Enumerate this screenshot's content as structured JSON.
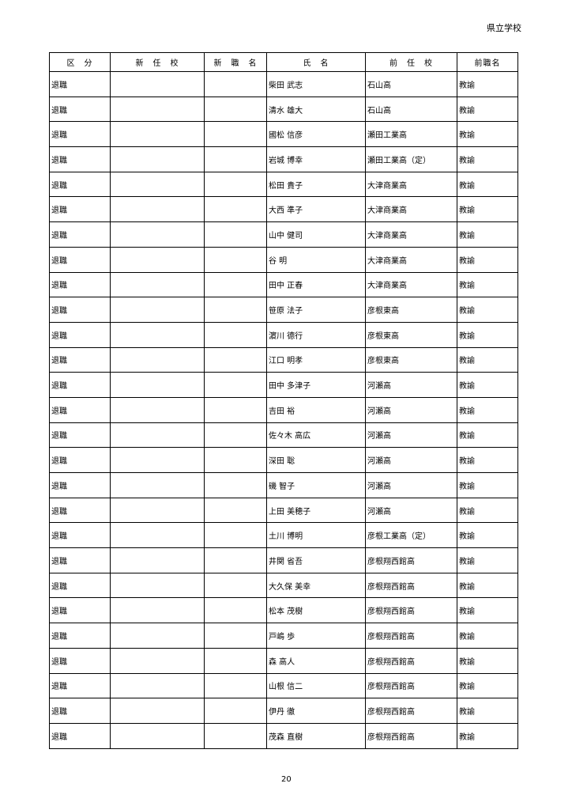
{
  "header": {
    "label": "県立学校"
  },
  "table": {
    "columns": [
      "区　分",
      "新　任　校",
      "新　職　名",
      "氏　名",
      "前　任　校",
      "前職名"
    ],
    "rows": [
      [
        "退職",
        "",
        "",
        "柴田 武志",
        "石山高",
        "教諭"
      ],
      [
        "退職",
        "",
        "",
        "清水 雄大",
        "石山高",
        "教諭"
      ],
      [
        "退職",
        "",
        "",
        "國松 信彦",
        "瀬田工業高",
        "教諭"
      ],
      [
        "退職",
        "",
        "",
        "岩城 博幸",
        "瀬田工業高（定）",
        "教諭"
      ],
      [
        "退職",
        "",
        "",
        "松田 貴子",
        "大津商業高",
        "教諭"
      ],
      [
        "退職",
        "",
        "",
        "大西 準子",
        "大津商業高",
        "教諭"
      ],
      [
        "退職",
        "",
        "",
        "山中 健司",
        "大津商業高",
        "教諭"
      ],
      [
        "退職",
        "",
        "",
        "谷 明",
        "大津商業高",
        "教諭"
      ],
      [
        "退職",
        "",
        "",
        "田中 正春",
        "大津商業高",
        "教諭"
      ],
      [
        "退職",
        "",
        "",
        "笹原 法子",
        "彦根東高",
        "教諭"
      ],
      [
        "退職",
        "",
        "",
        "濵川 德行",
        "彦根東高",
        "教諭"
      ],
      [
        "退職",
        "",
        "",
        "江口 明孝",
        "彦根東高",
        "教諭"
      ],
      [
        "退職",
        "",
        "",
        "田中 多津子",
        "河瀬高",
        "教諭"
      ],
      [
        "退職",
        "",
        "",
        "吉田 裕",
        "河瀬高",
        "教諭"
      ],
      [
        "退職",
        "",
        "",
        "佐々木 高広",
        "河瀬高",
        "教諭"
      ],
      [
        "退職",
        "",
        "",
        "深田 聡",
        "河瀬高",
        "教諭"
      ],
      [
        "退職",
        "",
        "",
        "磯 智子",
        "河瀬高",
        "教諭"
      ],
      [
        "退職",
        "",
        "",
        "上田 美穂子",
        "河瀬高",
        "教諭"
      ],
      [
        "退職",
        "",
        "",
        "土川 博明",
        "彦根工業高（定）",
        "教諭"
      ],
      [
        "退職",
        "",
        "",
        "井関 省吾",
        "彦根翔西館高",
        "教諭"
      ],
      [
        "退職",
        "",
        "",
        "大久保 美幸",
        "彦根翔西館高",
        "教諭"
      ],
      [
        "退職",
        "",
        "",
        "松本 茂樹",
        "彦根翔西館高",
        "教諭"
      ],
      [
        "退職",
        "",
        "",
        "戸嶋 歩",
        "彦根翔西館高",
        "教諭"
      ],
      [
        "退職",
        "",
        "",
        "森 高人",
        "彦根翔西館高",
        "教諭"
      ],
      [
        "退職",
        "",
        "",
        "山根 信二",
        "彦根翔西館高",
        "教諭"
      ],
      [
        "退職",
        "",
        "",
        "伊丹 徹",
        "彦根翔西館高",
        "教諭"
      ],
      [
        "退職",
        "",
        "",
        "茂森 直樹",
        "彦根翔西館高",
        "教諭"
      ]
    ]
  },
  "footer": {
    "page_number": "20"
  }
}
